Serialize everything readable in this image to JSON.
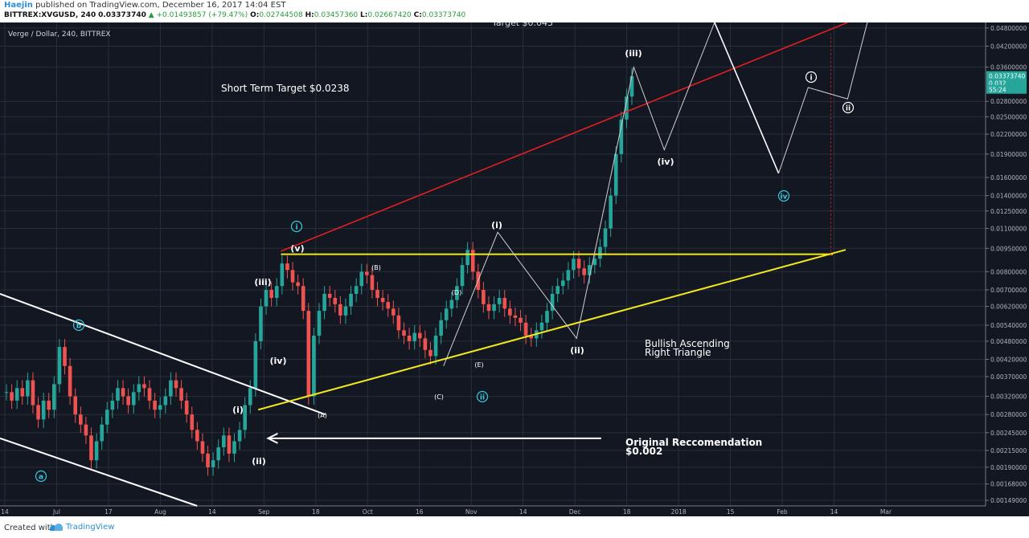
{
  "header": {
    "author": "Haejin",
    "published_text": "published on TradingView.com, December 16, 2017 14:04 EST",
    "symbol": "BITTREX:XVGUSD, 240",
    "last": "0.03373740",
    "change": "▲ +0.01493857 (+79.47%)",
    "ohlc_o": "O:",
    "ohlc_o_val": "0.02744508",
    "ohlc_h": "H:",
    "ohlc_h_val": "0.03457360",
    "ohlc_l": "L:",
    "ohlc_l_val": "0.02667420",
    "ohlc_c": "C:",
    "ohlc_c_val": "0.03373740"
  },
  "footer": {
    "created_with": "Created with",
    "brand": "TradingView"
  },
  "colors": {
    "background": "#131722",
    "grid": "#2a2e39",
    "up": "#26a69a",
    "down": "#ef5350",
    "red_line": "#e02020",
    "yellow_line": "#f2e81d",
    "white_line": "#ffffff",
    "cyan_label": "#3bc9db",
    "price_label": "#26a69a"
  },
  "chart_data": {
    "type": "candlestick",
    "title": "Verge / Dollar, 240, BITTREX",
    "partial_title": "Target $0.043",
    "y_scale": "log",
    "ylim": [
      0.00143,
      0.05
    ],
    "y_ticks": [
      "0.04800000",
      "0.04200000",
      "0.03600000",
      "0.02800000",
      "0.02500000",
      "0.02200000",
      "0.01900000",
      "0.01600000",
      "0.01400000",
      "0.01250000",
      "0.01100000",
      "0.00950000",
      "0.00800000",
      "0.00700000",
      "0.00620000",
      "0.00540000",
      "0.00480000",
      "0.00420000",
      "0.00370000",
      "0.00320000",
      "0.00280000",
      "0.00245000",
      "0.00215000",
      "0.00190000",
      "0.00168000",
      "0.00149000"
    ],
    "y_tick_values": [
      0.048,
      0.042,
      0.036,
      0.028,
      0.025,
      0.022,
      0.019,
      0.016,
      0.014,
      0.0125,
      0.011,
      0.0095,
      0.008,
      0.007,
      0.0062,
      0.0054,
      0.0048,
      0.0042,
      0.0037,
      0.0032,
      0.0028,
      0.00245,
      0.00215,
      0.0019,
      0.00168,
      0.00149
    ],
    "x_ticks": [
      "14",
      "Jul",
      "17",
      "Aug",
      "14",
      "Sep",
      "18",
      "Oct",
      "16",
      "Nov",
      "14",
      "Dec",
      "18",
      "2018",
      "15",
      "Feb",
      "14",
      "Mar"
    ],
    "price_labels": [
      {
        "text": "0.03373740",
        "value": 0.0337374
      },
      {
        "text": "0.032",
        "value": 0.032
      },
      {
        "text": "55:24",
        "value": 0.0305
      }
    ],
    "annotations": {
      "short_term_target": "Short Term Target $0.0238",
      "triangle_line1": "Bullish Ascending",
      "triangle_line2": "Right Triangle",
      "recommendation_line1": "Original Reccomendation",
      "recommendation_line2": "$0.002"
    },
    "wave_labels": [
      {
        "text": "(iii)",
        "value": 0.0393
      },
      {
        "text": "(iv)",
        "value": 0.0189
      },
      {
        "text": "(i)",
        "value": 0.0112
      },
      {
        "text": "(v)",
        "value": 0.0094
      },
      {
        "text": "(B)",
        "value": 0.0084
      },
      {
        "text": "(D)",
        "value": 0.0069
      },
      {
        "text": "(iii)",
        "value": 0.0074
      },
      {
        "text": "(ii)",
        "value": 0.0048
      },
      {
        "text": "(E)",
        "value": 0.0042
      },
      {
        "text": "(iv)",
        "value": 0.0043
      },
      {
        "text": "(C)",
        "value": 0.0036
      },
      {
        "text": "(i)",
        "value": 0.0029
      },
      {
        "text": "(A)",
        "value": 0.0028
      },
      {
        "text": "(ii)",
        "value": 0.002
      }
    ],
    "circle_labels": [
      {
        "text": "i",
        "value": 0.0106,
        "color": "cyan"
      },
      {
        "text": "ii",
        "value": 0.0036,
        "color": "cyan"
      },
      {
        "text": "iv",
        "value": 0.014,
        "color": "cyan"
      },
      {
        "text": "i",
        "value": 0.0315,
        "color": "white"
      },
      {
        "text": "ii",
        "value": 0.0275,
        "color": "white"
      },
      {
        "text": "b",
        "value": 0.0053,
        "color": "cyan"
      },
      {
        "text": "a",
        "value": 0.00178,
        "color": "cyan"
      }
    ],
    "lines": [
      {
        "name": "red-channel",
        "points": [
          [
            0.1,
            0.0091
          ],
          [
            0.83,
            0.05
          ]
        ]
      },
      {
        "name": "yellow-horizontal",
        "points": [
          [
            0.1,
            0.0091
          ],
          [
            0.81,
            0.0091
          ]
        ]
      },
      {
        "name": "yellow-rising",
        "points": [
          [
            0.0,
            0.0028
          ],
          [
            0.82,
            0.0093
          ]
        ]
      }
    ],
    "candles_approx": [
      0.0033,
      0.0031,
      0.0034,
      0.0032,
      0.0036,
      0.003,
      0.0027,
      0.0031,
      0.0029,
      0.0035,
      0.0046,
      0.004,
      0.0032,
      0.0028,
      0.0026,
      0.0024,
      0.002,
      0.0023,
      0.0026,
      0.0029,
      0.0031,
      0.0034,
      0.0032,
      0.003,
      0.0033,
      0.0035,
      0.0034,
      0.0031,
      0.0029,
      0.003,
      0.0032,
      0.0036,
      0.0034,
      0.0031,
      0.0028,
      0.0025,
      0.0023,
      0.0021,
      0.0019,
      0.002,
      0.0022,
      0.0024,
      0.0021,
      0.0023,
      0.0025,
      0.003,
      0.0034,
      0.0048,
      0.0062,
      0.007,
      0.0066,
      0.0072,
      0.0085,
      0.0081,
      0.0074,
      0.0072,
      0.006,
      0.0032,
      0.005,
      0.006,
      0.0068,
      0.0066,
      0.0063,
      0.0058,
      0.0062,
      0.0068,
      0.0072,
      0.008,
      0.0078,
      0.007,
      0.0066,
      0.0064,
      0.0061,
      0.0058,
      0.0052,
      0.005,
      0.0048,
      0.0051,
      0.0049,
      0.0045,
      0.0043,
      0.005,
      0.0056,
      0.0061,
      0.0065,
      0.0072,
      0.0084,
      0.0094,
      0.008,
      0.007,
      0.0063,
      0.006,
      0.0063,
      0.0066,
      0.0061,
      0.0058,
      0.0057,
      0.0055,
      0.005,
      0.0049,
      0.0052,
      0.0055,
      0.006,
      0.0068,
      0.0072,
      0.0075,
      0.0081,
      0.0088,
      0.0082,
      0.0078,
      0.0084,
      0.0088,
      0.0096,
      0.011,
      0.014,
      0.019,
      0.0245,
      0.029,
      0.0337
    ]
  }
}
